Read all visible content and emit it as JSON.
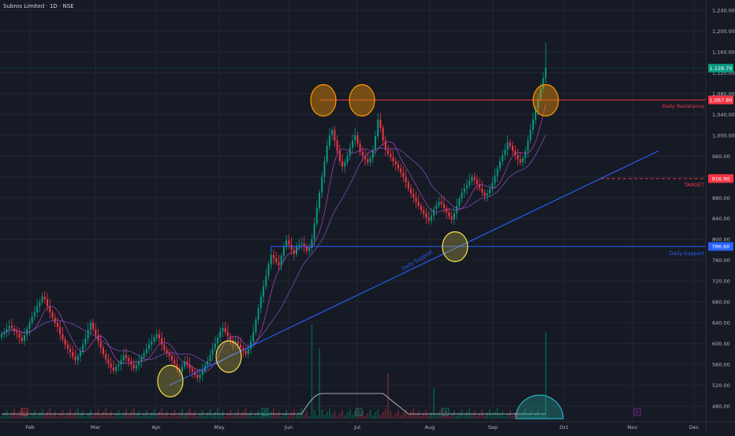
{
  "header": {
    "title": "Subros Limited · 1D · NSE"
  },
  "chart_data": {
    "type": "candlestick",
    "y_axis_ticks": [
      480,
      520,
      560,
      600,
      640,
      680,
      720,
      760,
      800,
      840,
      880,
      920,
      960,
      1000,
      1040,
      1080,
      1120,
      1160,
      1200,
      1240
    ],
    "x_axis_labels": [
      "Feb",
      "Mar",
      "Apr",
      "May",
      "Jun",
      "Jul",
      "Aug",
      "Sep",
      "Oct",
      "Nov",
      "Dec"
    ],
    "price_labels": {
      "last": "1,128.70",
      "resistance": "1,067.80",
      "target": "916.90",
      "support": "786.60"
    },
    "levels": {
      "resistance": {
        "value": 1067.8,
        "label": "Daily Resistance",
        "color": "#f23645"
      },
      "support": {
        "value": 786.6,
        "label": "Daily Support",
        "color": "#2962ff"
      },
      "target": {
        "value": 916.9,
        "label": "TARGET",
        "color": "#f23645"
      },
      "trendline": {
        "label": "Daily Support",
        "color": "#2962ff"
      }
    },
    "event_markers": [
      {
        "month": "Feb",
        "letter": "E",
        "color": "#f23645"
      },
      {
        "month": "Jun",
        "letter": "E",
        "color": "#089981"
      },
      {
        "month": "Jul",
        "letter": "D",
        "color": "#089981"
      },
      {
        "month": "Aug",
        "letter": "E",
        "color": "#089981"
      },
      {
        "month": "Nov",
        "letter": "E",
        "color": "#9c27b0"
      }
    ],
    "candles_close": [
      618,
      622,
      628,
      634,
      630,
      624,
      620,
      612,
      605,
      616,
      628,
      640,
      652,
      660,
      672,
      680,
      690,
      685,
      672,
      660,
      650,
      640,
      632,
      618,
      608,
      598,
      590,
      584,
      575,
      568,
      576,
      585,
      598,
      610,
      626,
      640,
      628,
      616,
      604,
      592,
      580,
      570,
      562,
      554,
      548,
      556,
      560,
      568,
      578,
      572,
      566,
      560,
      552,
      558,
      566,
      574,
      582,
      590,
      598,
      604,
      612,
      618,
      610,
      598,
      588,
      582,
      576,
      568,
      560,
      552,
      546,
      556,
      566,
      560,
      552,
      546,
      540,
      534,
      540,
      548,
      558,
      566,
      578,
      590,
      600,
      612,
      624,
      630,
      622,
      614,
      606,
      600,
      604,
      598,
      592,
      586,
      580,
      590,
      604,
      622,
      646,
      668,
      690,
      710,
      730,
      752,
      770,
      764,
      756,
      750,
      768,
      786,
      798,
      790,
      780,
      772,
      786,
      790,
      792,
      786,
      778,
      784,
      800,
      830,
      860,
      890,
      920,
      950,
      980,
      1000,
      1010,
      990,
      970,
      950,
      940,
      948,
      960,
      976,
      990,
      1000,
      984,
      968,
      960,
      954,
      948,
      956,
      972,
      998,
      1030,
      1014,
      990,
      972,
      964,
      958,
      950,
      944,
      936,
      928,
      920,
      910,
      898,
      888,
      880,
      872,
      864,
      856,
      850,
      842,
      836,
      846,
      858,
      866,
      872,
      868,
      860,
      852,
      844,
      838,
      850,
      864,
      878,
      890,
      898,
      904,
      912,
      920,
      914,
      906,
      898,
      890,
      884,
      888,
      896,
      908,
      922,
      936,
      950,
      962,
      972,
      986,
      980,
      970,
      962,
      954,
      948,
      956,
      970,
      990,
      1010,
      1030,
      1050,
      1070,
      1090,
      1110,
      1128.7
    ],
    "candles_open": [
      612,
      618,
      622,
      628,
      634,
      630,
      624,
      620,
      612,
      605,
      616,
      628,
      640,
      652,
      660,
      672,
      680,
      690,
      685,
      672,
      660,
      650,
      640,
      632,
      618,
      608,
      598,
      590,
      584,
      575,
      568,
      576,
      585,
      598,
      610,
      626,
      640,
      628,
      616,
      604,
      592,
      580,
      570,
      562,
      554,
      548,
      556,
      560,
      568,
      578,
      572,
      566,
      560,
      552,
      558,
      566,
      574,
      582,
      590,
      598,
      604,
      612,
      618,
      610,
      598,
      588,
      582,
      576,
      568,
      560,
      552,
      546,
      556,
      566,
      560,
      552,
      546,
      540,
      534,
      540,
      548,
      558,
      566,
      578,
      590,
      600,
      612,
      624,
      630,
      622,
      614,
      606,
      600,
      604,
      598,
      592,
      586,
      580,
      590,
      604,
      622,
      646,
      668,
      690,
      710,
      730,
      752,
      770,
      764,
      756,
      750,
      768,
      786,
      798,
      790,
      780,
      772,
      786,
      790,
      792,
      786,
      778,
      784,
      800,
      830,
      860,
      890,
      920,
      950,
      980,
      1000,
      1010,
      990,
      970,
      950,
      940,
      948,
      960,
      976,
      990,
      1000,
      984,
      968,
      960,
      954,
      948,
      956,
      972,
      998,
      1030,
      1014,
      990,
      972,
      964,
      958,
      950,
      944,
      936,
      928,
      920,
      910,
      898,
      888,
      880,
      872,
      864,
      856,
      850,
      842,
      836,
      846,
      858,
      866,
      872,
      868,
      860,
      852,
      844,
      838,
      850,
      864,
      878,
      890,
      898,
      904,
      912,
      920,
      914,
      906,
      898,
      890,
      884,
      888,
      896,
      908,
      922,
      936,
      950,
      962,
      972,
      986,
      980,
      970,
      962,
      954,
      948,
      956,
      970,
      990,
      1010,
      1030,
      1050,
      1070,
      1090,
      1110
    ],
    "colors": {
      "up": "#089981",
      "down": "#f23645",
      "bg": "#161a25",
      "grid": "#222633",
      "axis_text": "#b2b5be",
      "sma_fast": "#ab47bc",
      "sma_slow": "#7e57c2"
    }
  }
}
